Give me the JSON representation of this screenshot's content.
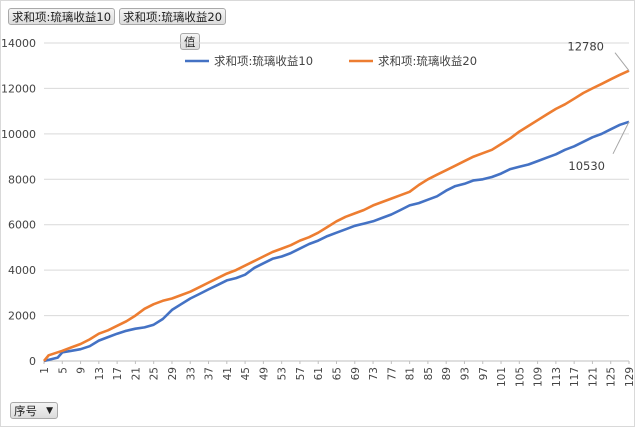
{
  "field_buttons": [
    "求和项:琉璃收益10",
    "求和项:琉璃收益20"
  ],
  "value_button": "值",
  "axis_field": {
    "label": "序号",
    "arrow": "▼"
  },
  "chart_data": {
    "type": "line",
    "title": "",
    "xlabel": "",
    "ylabel": "",
    "ylim": [
      0,
      14000
    ],
    "yticks": [
      0,
      2000,
      4000,
      6000,
      8000,
      10000,
      12000,
      14000
    ],
    "x_range": [
      1,
      129
    ],
    "x_tick_labels": [
      "1",
      "5",
      "9",
      "13",
      "17",
      "21",
      "25",
      "29",
      "33",
      "37",
      "41",
      "45",
      "49",
      "53",
      "57",
      "61",
      "65",
      "69",
      "73",
      "77",
      "81",
      "85",
      "89",
      "93",
      "97",
      "101",
      "105",
      "109",
      "113",
      "117",
      "121",
      "125",
      "129"
    ],
    "grid": true,
    "legend": "top",
    "series": [
      {
        "name": "求和项:琉璃收益10",
        "color": "#4472C4",
        "points": [
          [
            1,
            0
          ],
          [
            4,
            150
          ],
          [
            5,
            380
          ],
          [
            7,
            450
          ],
          [
            9,
            520
          ],
          [
            11,
            650
          ],
          [
            13,
            900
          ],
          [
            15,
            1050
          ],
          [
            17,
            1200
          ],
          [
            19,
            1330
          ],
          [
            21,
            1420
          ],
          [
            23,
            1480
          ],
          [
            25,
            1600
          ],
          [
            27,
            1850
          ],
          [
            29,
            2250
          ],
          [
            31,
            2500
          ],
          [
            33,
            2750
          ],
          [
            35,
            2950
          ],
          [
            37,
            3150
          ],
          [
            39,
            3350
          ],
          [
            41,
            3550
          ],
          [
            43,
            3650
          ],
          [
            45,
            3800
          ],
          [
            47,
            4100
          ],
          [
            49,
            4300
          ],
          [
            51,
            4500
          ],
          [
            53,
            4600
          ],
          [
            55,
            4750
          ],
          [
            57,
            4950
          ],
          [
            59,
            5150
          ],
          [
            61,
            5300
          ],
          [
            63,
            5500
          ],
          [
            65,
            5650
          ],
          [
            67,
            5800
          ],
          [
            69,
            5950
          ],
          [
            71,
            6050
          ],
          [
            73,
            6150
          ],
          [
            75,
            6300
          ],
          [
            77,
            6450
          ],
          [
            79,
            6650
          ],
          [
            81,
            6850
          ],
          [
            83,
            6950
          ],
          [
            85,
            7100
          ],
          [
            87,
            7250
          ],
          [
            89,
            7500
          ],
          [
            91,
            7700
          ],
          [
            93,
            7800
          ],
          [
            95,
            7950
          ],
          [
            97,
            8000
          ],
          [
            99,
            8100
          ],
          [
            101,
            8250
          ],
          [
            103,
            8450
          ],
          [
            105,
            8550
          ],
          [
            107,
            8650
          ],
          [
            109,
            8800
          ],
          [
            111,
            8950
          ],
          [
            113,
            9100
          ],
          [
            115,
            9300
          ],
          [
            117,
            9450
          ],
          [
            119,
            9650
          ],
          [
            121,
            9850
          ],
          [
            123,
            10000
          ],
          [
            125,
            10200
          ],
          [
            127,
            10400
          ],
          [
            129,
            10530
          ]
        ]
      },
      {
        "name": "求和项:琉璃收益20",
        "color": "#ED7D31",
        "points": [
          [
            1,
            0
          ],
          [
            2,
            250
          ],
          [
            5,
            450
          ],
          [
            7,
            600
          ],
          [
            9,
            750
          ],
          [
            11,
            950
          ],
          [
            13,
            1200
          ],
          [
            15,
            1350
          ],
          [
            17,
            1550
          ],
          [
            19,
            1750
          ],
          [
            21,
            2000
          ],
          [
            23,
            2300
          ],
          [
            25,
            2500
          ],
          [
            27,
            2650
          ],
          [
            29,
            2750
          ],
          [
            31,
            2900
          ],
          [
            33,
            3050
          ],
          [
            35,
            3250
          ],
          [
            37,
            3450
          ],
          [
            39,
            3650
          ],
          [
            41,
            3850
          ],
          [
            43,
            4000
          ],
          [
            45,
            4200
          ],
          [
            47,
            4400
          ],
          [
            49,
            4600
          ],
          [
            51,
            4800
          ],
          [
            53,
            4950
          ],
          [
            55,
            5100
          ],
          [
            57,
            5300
          ],
          [
            59,
            5450
          ],
          [
            61,
            5650
          ],
          [
            63,
            5900
          ],
          [
            65,
            6150
          ],
          [
            67,
            6350
          ],
          [
            69,
            6500
          ],
          [
            71,
            6650
          ],
          [
            73,
            6850
          ],
          [
            75,
            7000
          ],
          [
            77,
            7150
          ],
          [
            79,
            7300
          ],
          [
            81,
            7450
          ],
          [
            83,
            7750
          ],
          [
            85,
            8000
          ],
          [
            87,
            8200
          ],
          [
            89,
            8400
          ],
          [
            91,
            8600
          ],
          [
            93,
            8800
          ],
          [
            95,
            9000
          ],
          [
            97,
            9150
          ],
          [
            99,
            9300
          ],
          [
            101,
            9550
          ],
          [
            103,
            9800
          ],
          [
            105,
            10100
          ],
          [
            107,
            10350
          ],
          [
            109,
            10600
          ],
          [
            111,
            10850
          ],
          [
            113,
            11100
          ],
          [
            115,
            11300
          ],
          [
            117,
            11550
          ],
          [
            119,
            11800
          ],
          [
            121,
            12000
          ],
          [
            123,
            12200
          ],
          [
            125,
            12400
          ],
          [
            127,
            12600
          ],
          [
            129,
            12780
          ]
        ]
      }
    ],
    "data_labels": [
      {
        "series": 0,
        "text": "10530"
      },
      {
        "series": 1,
        "text": "12780"
      }
    ]
  }
}
